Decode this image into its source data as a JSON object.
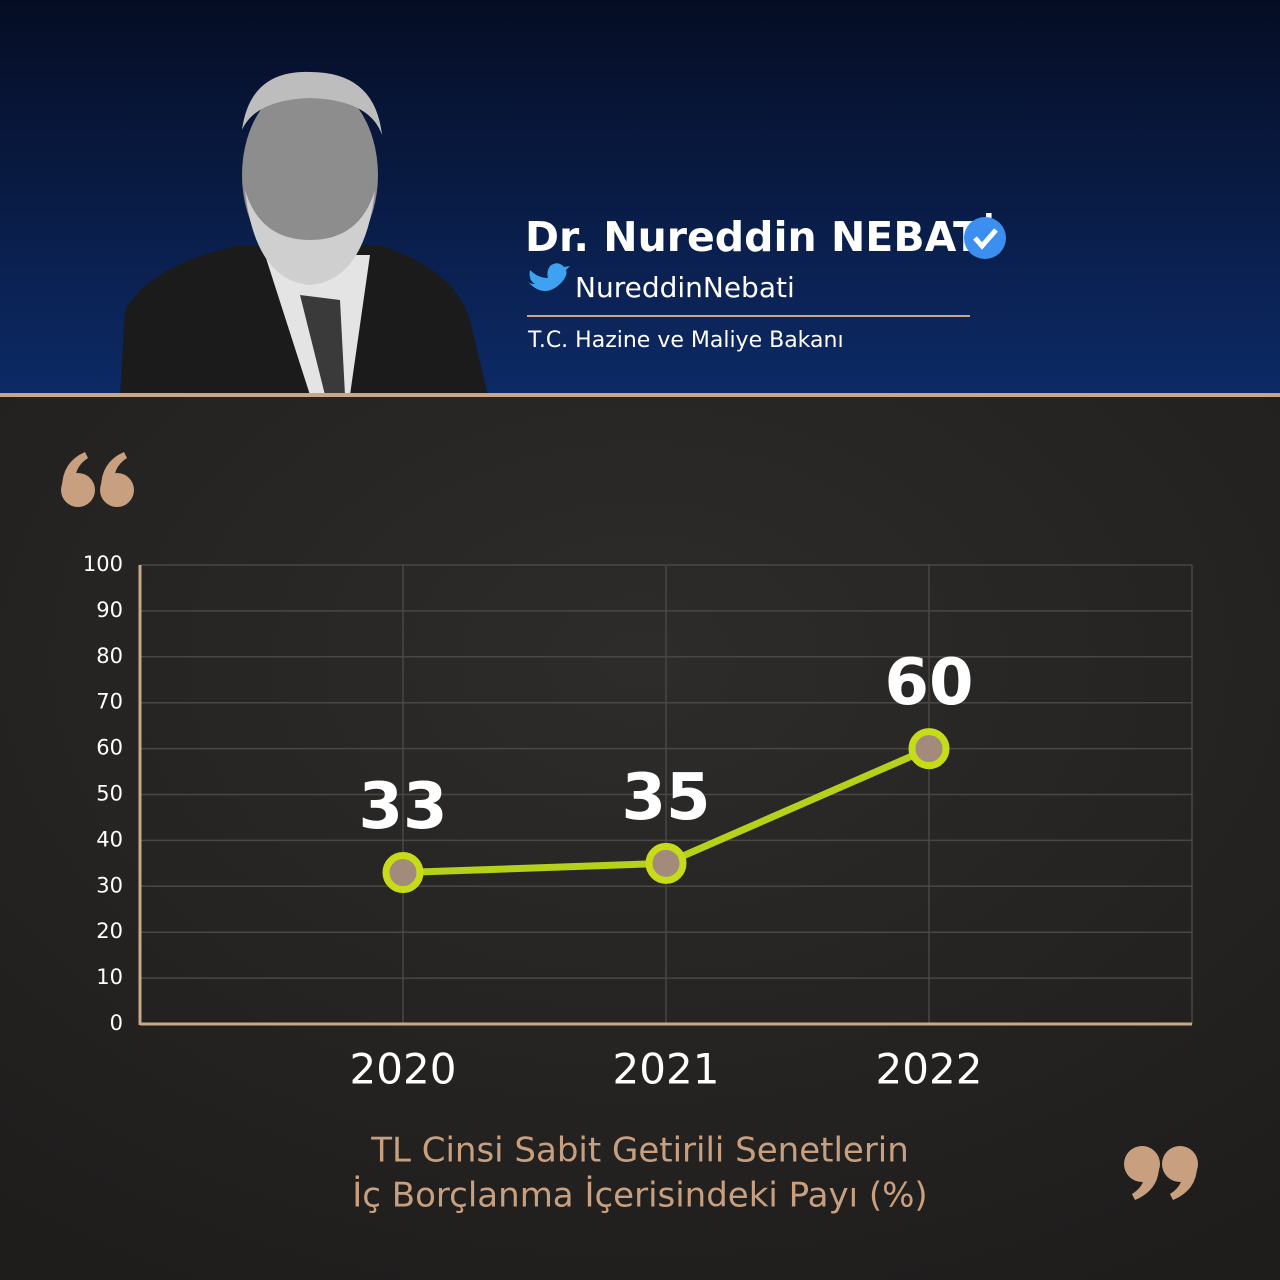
{
  "header": {
    "name": "Dr. Nureddin NEBATİ",
    "handle": "NureddinNebati",
    "role": "T.C. Hazine ve Maliye Bakanı"
  },
  "chart_data": {
    "type": "line",
    "title": "TL Cinsi Sabit Getirili Senetlerin",
    "subtitle": "İç Borçlanma İçerisindeki Payı (%)",
    "categories": [
      "2020",
      "2021",
      "2022"
    ],
    "values": [
      33,
      35,
      60
    ],
    "color": "#b7d11a",
    "ylim": [
      0,
      100
    ],
    "yticks": [
      0,
      10,
      20,
      30,
      40,
      50,
      60,
      70,
      80,
      90,
      100
    ],
    "grid": true
  }
}
